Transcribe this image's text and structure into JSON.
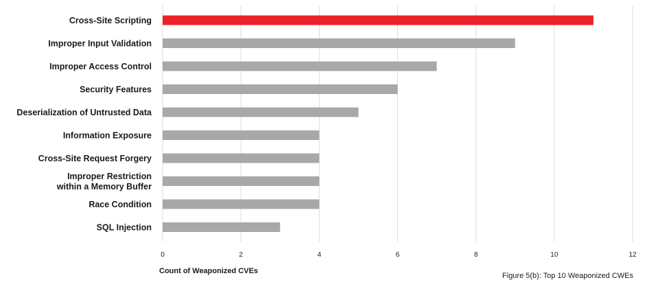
{
  "chart_data": {
    "type": "bar",
    "orientation": "horizontal",
    "categories": [
      [
        "Cross-Site Scripting"
      ],
      [
        "Improper Input Validation"
      ],
      [
        "Improper Access Control"
      ],
      [
        "Security Features"
      ],
      [
        "Deserialization of Untrusted Data"
      ],
      [
        "Information Exposure"
      ],
      [
        "Cross-Site Request Forgery"
      ],
      [
        "Improper Restriction",
        "within a Memory Buffer"
      ],
      [
        "Race Condition"
      ],
      [
        "SQL Injection"
      ]
    ],
    "values": [
      11,
      9,
      7,
      6,
      5,
      4,
      4,
      4,
      4,
      3
    ],
    "highlight_index": 0,
    "xlabel": "Count of  Weaponized CVEs",
    "xlim": [
      0,
      12
    ],
    "xticks": [
      0,
      2,
      4,
      6,
      8,
      10,
      12
    ],
    "grid": "vertical",
    "colors": {
      "highlight": "#ee2229",
      "bar": "#a8a8ab",
      "grid": "#dcdcdc"
    }
  },
  "caption": "Figure 5(b): Top 10 Weaponized CWEs"
}
